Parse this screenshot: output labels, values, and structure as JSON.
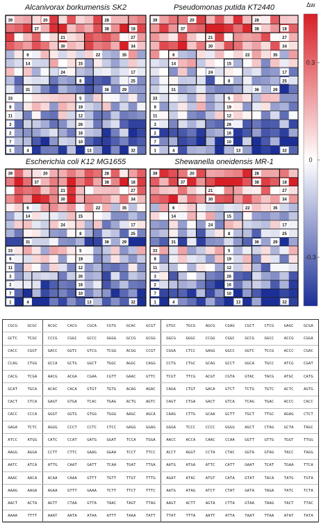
{
  "chart_data": {
    "type": "heatmap",
    "panels": [
      {
        "title": "Alcanivorax borkumensis SK2",
        "seed": 11,
        "position": "top-left"
      },
      {
        "title": "Pseudomonas putida KT2440",
        "seed": 23,
        "position": "top-right"
      },
      {
        "title": "Escherichia coli K12 MG1655",
        "seed": 37,
        "position": "bottom-left"
      },
      {
        "title": "Shewanella oneidensis MR-1",
        "seed": 51,
        "position": "bottom-right"
      }
    ],
    "rows": 16,
    "cols": 16,
    "row_bias": [
      0.25,
      0.32,
      0.2,
      0.3,
      0.04,
      -0.02,
      -0.06,
      -0.16,
      -0.22,
      0.0,
      -0.05,
      -0.1,
      -0.17,
      -0.24,
      -0.3,
      -0.34
    ],
    "colorbar": {
      "label": "Δw",
      "ticks": [
        {
          "value": 0.3,
          "label": "0.3"
        },
        {
          "value": 0,
          "label": "0"
        },
        {
          "value": -0.3,
          "label": "-0.3"
        }
      ],
      "range": [
        -0.45,
        0.45
      ],
      "colors": [
        "#1c2f96",
        "#ffffff",
        "#d71f26"
      ]
    },
    "cluster_labels": [
      {
        "text": "39",
        "r": 0,
        "c": 0
      },
      {
        "text": "28",
        "r": 0,
        "c": 11
      },
      {
        "text": "20",
        "r": 0,
        "c": 4
      },
      {
        "text": "37",
        "r": 1,
        "c": 3
      },
      {
        "text": "38",
        "r": 1,
        "c": 11
      },
      {
        "text": "18",
        "r": 1,
        "c": 14
      },
      {
        "text": "21",
        "r": 2,
        "c": 6
      },
      {
        "text": "27",
        "r": 2,
        "c": 14
      },
      {
        "text": "30",
        "r": 3,
        "c": 6
      },
      {
        "text": "34",
        "r": 3,
        "c": 14
      },
      {
        "text": "6",
        "r": 4,
        "c": 2
      },
      {
        "text": "22",
        "r": 4,
        "c": 10
      },
      {
        "text": "35",
        "r": 4,
        "c": 13
      },
      {
        "text": "14",
        "r": 5,
        "c": 2
      },
      {
        "text": "15",
        "r": 5,
        "c": 8
      },
      {
        "text": "24",
        "r": 6,
        "c": 6
      },
      {
        "text": "17",
        "r": 6,
        "c": 14
      },
      {
        "text": "8",
        "r": 7,
        "c": 8
      },
      {
        "text": "25",
        "r": 7,
        "c": 14
      },
      {
        "text": "31",
        "r": 8,
        "c": 2
      },
      {
        "text": "36",
        "r": 8,
        "c": 11
      },
      {
        "text": "29",
        "r": 8,
        "c": 13
      },
      {
        "text": "33",
        "r": 9,
        "c": 0
      },
      {
        "text": "5",
        "r": 9,
        "c": 8
      },
      {
        "text": "9",
        "r": 10,
        "c": 0
      },
      {
        "text": "19",
        "r": 10,
        "c": 8
      },
      {
        "text": "11",
        "r": 11,
        "c": 0
      },
      {
        "text": "12",
        "r": 11,
        "c": 8
      },
      {
        "text": "3",
        "r": 12,
        "c": 0
      },
      {
        "text": "26",
        "r": 12,
        "c": 8
      },
      {
        "text": "2",
        "r": 13,
        "c": 0
      },
      {
        "text": "16",
        "r": 13,
        "c": 8
      },
      {
        "text": "7",
        "r": 14,
        "c": 0
      },
      {
        "text": "10",
        "r": 14,
        "c": 8
      },
      {
        "text": "1",
        "r": 15,
        "c": 0
      },
      {
        "text": "4",
        "r": 15,
        "c": 2
      },
      {
        "text": "13",
        "r": 15,
        "c": 9
      },
      {
        "text": "32",
        "r": 15,
        "c": 14
      }
    ],
    "cluster_borders": [
      {
        "r": 0,
        "c": 0,
        "h": 2,
        "w": 3
      },
      {
        "r": 0,
        "c": 3,
        "h": 2,
        "w": 3
      },
      {
        "r": 0,
        "c": 11,
        "h": 2,
        "w": 3
      },
      {
        "r": 2,
        "c": 6,
        "h": 2,
        "w": 3
      },
      {
        "r": 4,
        "c": 2,
        "h": 4,
        "w": 3
      },
      {
        "r": 5,
        "c": 8,
        "h": 3,
        "w": 2
      },
      {
        "r": 8,
        "c": 2,
        "h": 1,
        "w": 8
      },
      {
        "r": 9,
        "c": 0,
        "h": 7,
        "w": 2
      },
      {
        "r": 9,
        "c": 8,
        "h": 6,
        "w": 3
      },
      {
        "r": 12,
        "c": 3,
        "h": 3,
        "w": 3
      }
    ]
  },
  "codon_table": {
    "rows": [
      [
        "CGCG",
        "GCGC",
        "ACGC",
        "CACG",
        "CGCA",
        "CGTG",
        "GCAC",
        "GCGT",
        "GTGC",
        "TGCG",
        "AGCG",
        "CGAG",
        "CGCT",
        "CTCG",
        "GAGC",
        "GCGA"
      ],
      [
        "GCTC",
        "TCGC",
        "CCCG",
        "CGGC",
        "GCCC",
        "GGGG",
        "GCCG",
        "GCGG",
        "GGCG",
        "GGGC",
        "CCGG",
        "CGGC",
        "GCCG",
        "GGCC",
        "ACCG",
        "CGGA"
      ],
      [
        "CACC",
        "CGGT",
        "GACC",
        "GGTC",
        "GTCG",
        "TCGG",
        "ACGG",
        "CCGT",
        "CGGA",
        "CTCC",
        "GAGG",
        "GGCC",
        "GGTC",
        "TCCG",
        "ACCC",
        "CGAC"
      ],
      [
        "CCAG",
        "CTGG",
        "GCCA",
        "GCTG",
        "GGCT",
        "TGGC",
        "AGGC",
        "CAGG",
        "CCTG",
        "CTGC",
        "GCAG",
        "GCCT",
        "GGCA",
        "TGCC",
        "ATCG",
        "CGAT"
      ],
      [
        "CACG",
        "TCGA",
        "AACG",
        "ACGA",
        "CGAA",
        "CGTT",
        "GAAC",
        "GTTC",
        "TCGT",
        "TTCG",
        "ACGT",
        "CGTA",
        "GTAC",
        "TACG",
        "ATGC",
        "CATG"
      ],
      [
        "GCAT",
        "TGCA",
        "ACAC",
        "CACA",
        "GTGT",
        "TGTG",
        "ACAG",
        "AGAC",
        "CAGA",
        "CTGT",
        "GACA",
        "GTCT",
        "TCTG",
        "TGTC",
        "ACTC",
        "AGTG"
      ],
      [
        "CACT",
        "CTCA",
        "GAGT",
        "GTGA",
        "TCAC",
        "TGAG",
        "ACTG",
        "AGTC",
        "CAGT",
        "CTGA",
        "GACT",
        "GTCA",
        "TCAG",
        "TGAC",
        "ACCC",
        "CACC"
      ],
      [
        "CACC",
        "CCCA",
        "GGGT",
        "GGTG",
        "GTGG",
        "TGGG",
        "AAGC",
        "AGCA",
        "CAAG",
        "CTTG",
        "GCAA",
        "GCTT",
        "TGCT",
        "TTGC",
        "AGAG",
        "CTCT"
      ],
      [
        "GAGA",
        "TCTC",
        "AGGG",
        "CCCT",
        "CCTC",
        "CTCC",
        "GAGG",
        "GGAG",
        "GGGA",
        "TCCC",
        "CCCC",
        "GGGG",
        "AGCT",
        "CTAG",
        "GCTA",
        "TAGC"
      ],
      [
        "ATCC",
        "ATGG",
        "CATC",
        "CCAT",
        "GATG",
        "GGAT",
        "TCCA",
        "TGGA",
        "AACC",
        "ACCA",
        "CAAC",
        "CCAA",
        "GGTT",
        "GTTG",
        "TGGT",
        "TTGG"
      ],
      [
        "AAGG",
        "AGGA",
        "CCTT",
        "CTTC",
        "GAAG",
        "GGAA",
        "TCCT",
        "TTCC",
        "ACCT",
        "AGGT",
        "CCTA",
        "CTAC",
        "GGTA",
        "GTAG",
        "TACC",
        "TAGG"
      ],
      [
        "AATC",
        "ATCA",
        "ATTG",
        "CAAT",
        "GATT",
        "TCAA",
        "TGAT",
        "TTGA",
        "AATG",
        "ATGA",
        "ATTC",
        "CATT",
        "GAAT",
        "TCAT",
        "TGAA",
        "TTCA"
      ],
      [
        "AAAC",
        "AACA",
        "ACAA",
        "CAAA",
        "GTTT",
        "TGTT",
        "TTGT",
        "TTTG",
        "AGAT",
        "ATAC",
        "ATGT",
        "CATA",
        "GTAT",
        "TACA",
        "TATG",
        "TGTA"
      ],
      [
        "AAAG",
        "AAGA",
        "AGAA",
        "GTTT",
        "GAAA",
        "TCTT",
        "TTCT",
        "TTTC",
        "AATG",
        "ATAG",
        "ATCT",
        "CTAT",
        "GATA",
        "TAGA",
        "TATC",
        "TCTA"
      ],
      [
        "AACT",
        "ACTA",
        "AGTT",
        "CTAA",
        "GTTA",
        "TAAC",
        "TAGT",
        "TTAG",
        "AAGT",
        "ACTT",
        "AGTA",
        "CTTA",
        "GTAA",
        "TAAG",
        "TACT",
        "TTAC"
      ],
      [
        "AAAA",
        "TTTT",
        "AAAT",
        "AATA",
        "ATAA",
        "ATTT",
        "TAAA",
        "TATT",
        "TTAT",
        "TTTA",
        "AATT",
        "ATTA",
        "TAAT",
        "TTAA",
        "ATAT",
        "TATA"
      ]
    ],
    "group_bounds": [
      2,
      8
    ]
  }
}
